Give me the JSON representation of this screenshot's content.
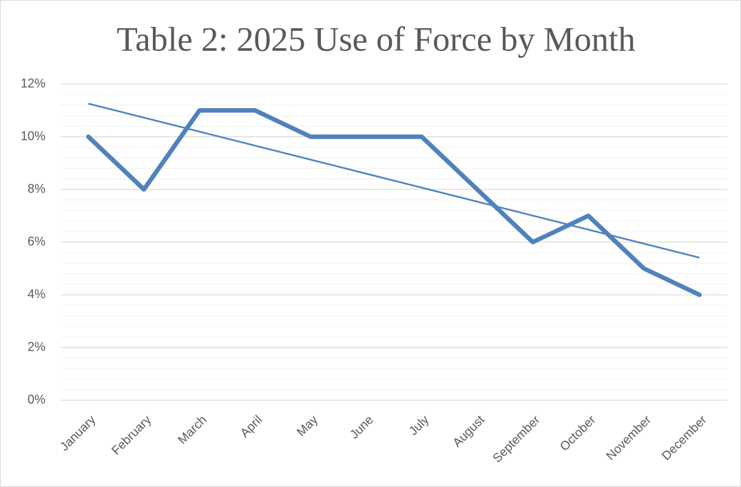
{
  "chart_data": {
    "type": "line",
    "title": "Table 2: 2025 Use of Force by Month",
    "categories": [
      "January",
      "February",
      "March",
      "April",
      "May",
      "June",
      "July",
      "August",
      "September",
      "October",
      "November",
      "December"
    ],
    "series": [
      {
        "name": "Use of Force",
        "color": "#4f81bd",
        "values": [
          10,
          8,
          11,
          11,
          10,
          10,
          10,
          8,
          6,
          7,
          5,
          4
        ]
      }
    ],
    "trendline": true,
    "ylim": [
      0,
      12
    ],
    "yticks": [
      {
        "value": 0,
        "label": "0%"
      },
      {
        "value": 2,
        "label": "2%"
      },
      {
        "value": 4,
        "label": "4%"
      },
      {
        "value": 6,
        "label": "6%"
      },
      {
        "value": 8,
        "label": "8%"
      },
      {
        "value": 10,
        "label": "10%"
      },
      {
        "value": 12,
        "label": "12%"
      }
    ],
    "grid": true,
    "minor_grid": true
  }
}
